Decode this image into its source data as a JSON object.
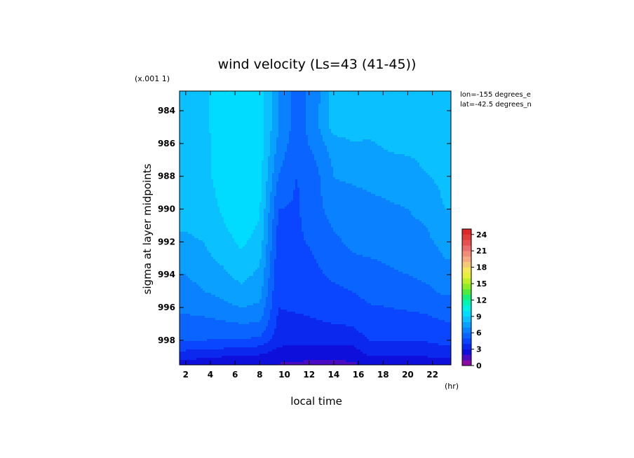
{
  "chart_data": {
    "type": "heatmap",
    "title": "wind velocity (Ls=43 (41-45))",
    "xlabel": "local time",
    "x_unit": "(hr)",
    "ylabel": "sigma at layer midpoints",
    "y_scale_note": "(x.001 1)",
    "info_lines": [
      "lon=-155 degrees_e",
      "lat=-42.5 degrees_n"
    ],
    "x_ticks": [
      2,
      4,
      6,
      8,
      10,
      12,
      14,
      16,
      18,
      20,
      22
    ],
    "y_ticks": [
      984,
      986,
      988,
      990,
      992,
      994,
      996,
      998
    ],
    "xlim": [
      1.5,
      23.5
    ],
    "ylim": [
      982.8,
      999.5
    ],
    "colorbar": {
      "ticks": [
        0,
        3,
        6,
        9,
        12,
        15,
        18,
        21,
        24
      ],
      "levels": [
        0,
        1,
        2,
        3,
        4,
        5,
        6,
        7,
        8,
        9,
        10,
        11,
        12,
        13,
        14,
        15,
        16,
        17,
        18,
        19,
        20,
        21,
        22,
        23,
        24,
        25
      ],
      "colors": [
        "#8a0aa3",
        "#4b0bc2",
        "#0f0fdc",
        "#0a28ee",
        "#0a46ff",
        "#0a64ff",
        "#0a82ff",
        "#0aa0ff",
        "#0ac0ff",
        "#00dcff",
        "#00f0e6",
        "#00f5b4",
        "#14f07a",
        "#50eb3c",
        "#8cec28",
        "#beee28",
        "#e6f03c",
        "#f5e65a",
        "#f5c878",
        "#f5aa82",
        "#f08c78",
        "#eb6e6e",
        "#e65050",
        "#e13c3c",
        "#dc2828"
      ]
    },
    "x": [
      2,
      3.5,
      5,
      6.5,
      8,
      9.5,
      11,
      12.5,
      14,
      15.5,
      17,
      18.5,
      20,
      21.5,
      23
    ],
    "y": [
      983,
      984,
      985,
      986,
      987,
      988,
      989,
      990,
      991,
      992,
      993,
      994,
      995,
      996,
      997,
      998,
      998.5,
      999,
      999.4
    ],
    "z": [
      [
        8.8,
        8.9,
        9.3,
        9.8,
        9.6,
        7.0,
        5.5,
        6.5,
        8.5,
        8.6,
        8.7,
        8.7,
        8.8,
        8.8,
        8.7
      ],
      [
        8.8,
        8.9,
        9.3,
        9.9,
        9.7,
        7.0,
        5.5,
        6.6,
        8.5,
        8.6,
        8.7,
        8.7,
        8.8,
        8.8,
        8.7
      ],
      [
        8.8,
        8.9,
        9.3,
        9.9,
        9.7,
        7.0,
        5.5,
        6.6,
        8.5,
        8.6,
        8.7,
        8.8,
        8.9,
        8.8,
        8.7
      ],
      [
        8.7,
        8.8,
        9.3,
        9.9,
        9.6,
        6.8,
        5.3,
        6.4,
        7.5,
        7.9,
        7.8,
        8.4,
        8.6,
        8.7,
        8.6
      ],
      [
        8.6,
        8.8,
        9.3,
        9.9,
        9.5,
        6.4,
        5.0,
        6.0,
        7.2,
        7.4,
        7.3,
        7.6,
        7.8,
        8.3,
        8.5
      ],
      [
        8.5,
        8.8,
        9.3,
        9.9,
        9.4,
        6.0,
        5.0,
        5.7,
        7.0,
        7.1,
        7.2,
        7.3,
        7.4,
        7.9,
        8.4
      ],
      [
        8.4,
        8.7,
        9.2,
        9.8,
        9.3,
        5.5,
        4.9,
        5.6,
        6.9,
        6.9,
        7.0,
        7.1,
        7.2,
        7.4,
        8.2
      ],
      [
        8.3,
        8.6,
        9.1,
        9.7,
        9.1,
        5.0,
        4.9,
        5.5,
        6.6,
        6.8,
        6.8,
        6.9,
        7.0,
        7.3,
        8.0
      ],
      [
        8.1,
        8.4,
        8.9,
        9.5,
        8.9,
        4.8,
        4.9,
        5.3,
        6.1,
        6.5,
        6.6,
        6.7,
        6.8,
        7.0,
        7.7
      ],
      [
        7.8,
        8.0,
        8.6,
        9.2,
        8.6,
        4.6,
        4.9,
        5.1,
        5.8,
        6.2,
        6.3,
        6.4,
        6.5,
        6.8,
        7.3
      ],
      [
        7.4,
        7.8,
        8.2,
        8.8,
        8.2,
        4.4,
        4.8,
        5.0,
        5.5,
        5.9,
        6.0,
        6.1,
        6.2,
        6.5,
        7.0
      ],
      [
        7.0,
        7.4,
        7.8,
        8.3,
        7.8,
        4.3,
        4.6,
        4.8,
        5.2,
        5.5,
        5.7,
        5.9,
        6.0,
        6.2,
        6.6
      ],
      [
        6.6,
        7.0,
        7.3,
        7.8,
        7.4,
        4.1,
        4.3,
        4.5,
        4.8,
        5.0,
        5.4,
        5.5,
        5.6,
        5.8,
        6.2
      ],
      [
        6.2,
        6.4,
        6.7,
        7.0,
        6.8,
        4.0,
        4.1,
        4.2,
        4.4,
        4.6,
        4.9,
        5.0,
        5.1,
        5.2,
        5.5
      ],
      [
        5.7,
        5.7,
        5.8,
        6.0,
        5.9,
        3.8,
        3.8,
        3.9,
        4.0,
        4.1,
        4.6,
        4.6,
        4.6,
        4.7,
        4.9
      ],
      [
        5.0,
        5.0,
        4.9,
        4.9,
        4.8,
        3.4,
        3.3,
        3.3,
        3.3,
        3.4,
        4.1,
        4.1,
        4.0,
        4.1,
        4.3
      ],
      [
        4.2,
        4.1,
        4.0,
        3.8,
        3.7,
        2.9,
        2.7,
        2.7,
        2.8,
        2.8,
        3.6,
        3.6,
        3.5,
        3.6,
        3.8
      ],
      [
        3.4,
        3.2,
        3.0,
        2.9,
        2.8,
        2.5,
        2.3,
        2.2,
        2.2,
        2.3,
        3.0,
        3.0,
        3.0,
        3.0,
        3.2
      ],
      [
        2.6,
        2.4,
        2.2,
        2.1,
        2.1,
        2.0,
        1.9,
        1.8,
        1.8,
        1.9,
        2.4,
        2.4,
        2.4,
        2.4,
        2.6
      ]
    ]
  }
}
